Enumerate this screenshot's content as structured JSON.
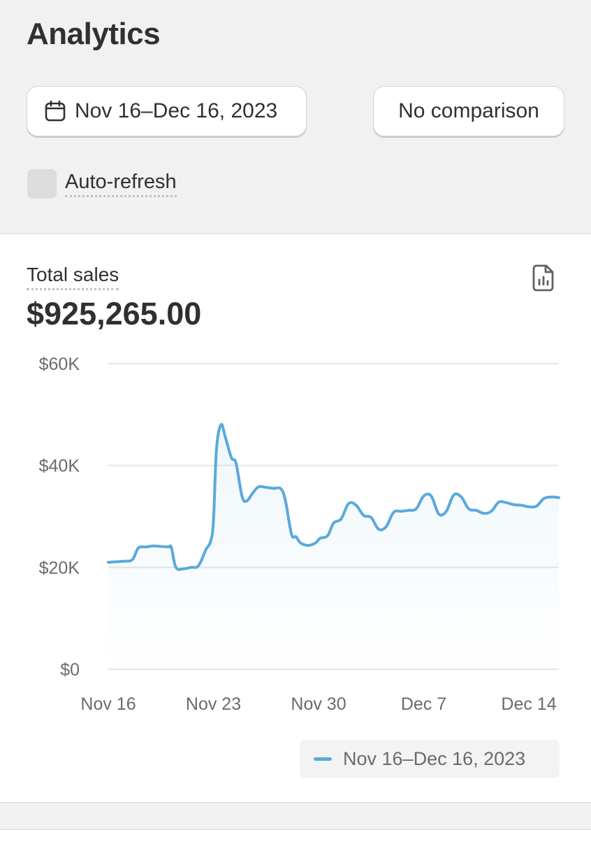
{
  "page": {
    "title": "Analytics"
  },
  "controls": {
    "date_range_label": "Nov 16–Dec 16, 2023",
    "comparison_label": "No comparison",
    "auto_refresh_label": "Auto-refresh",
    "auto_refresh_checked": false
  },
  "icons": {
    "date_button": "calendar-icon",
    "report": "report-icon"
  },
  "colors": {
    "series": "#5aa9dc",
    "background": "#f1f1f1",
    "card": "#ffffff"
  },
  "card": {
    "title": "Total sales",
    "total": "$925,265.00"
  },
  "chart_data": {
    "type": "area",
    "ylim": [
      0,
      60000
    ],
    "y_ticks": [
      0,
      20000,
      40000,
      60000
    ],
    "y_tick_labels": [
      "$0",
      "$20K",
      "$40K",
      "$60K"
    ],
    "x_tick_labels": [
      "Nov 16",
      "Nov 23",
      "Nov 30",
      "Dec 7",
      "Dec 14"
    ],
    "x_tick_days": [
      0,
      7,
      14,
      21,
      28
    ],
    "grid": true,
    "legend_position": "bottom-right",
    "series": [
      {
        "name": "Nov 16–Dec 16, 2023",
        "x": [
          0,
          1,
          1.6,
          2,
          2.5,
          3,
          3.5,
          4,
          4.2,
          4.5,
          5,
          5.5,
          6,
          6.5,
          6.8,
          7,
          7.2,
          7.5,
          7.8,
          8.2,
          8.5,
          8.9,
          9.2,
          9.6,
          10,
          10.5,
          11,
          11.5,
          11.8,
          12.2,
          12.5,
          12.8,
          13.3,
          13.8,
          14.1,
          14.6,
          15,
          15.5,
          16,
          16.5,
          17,
          17.5,
          18,
          18.5,
          19,
          19.5,
          20,
          20.5,
          21,
          21.5,
          22,
          22.5,
          23,
          23.5,
          24,
          24.5,
          25,
          25.5,
          26,
          26.5,
          27,
          27.5,
          28,
          28.5,
          29,
          29.5,
          30
        ],
        "values": [
          21000,
          21200,
          21500,
          23800,
          24000,
          24200,
          24100,
          24000,
          23900,
          20000,
          19700,
          20000,
          20300,
          23500,
          25000,
          29000,
          43000,
          48000,
          45500,
          41500,
          40500,
          34000,
          33000,
          34500,
          35800,
          35700,
          35500,
          35400,
          33000,
          26500,
          26000,
          24800,
          24300,
          24800,
          25700,
          26200,
          28700,
          29500,
          32500,
          32200,
          30200,
          29800,
          27500,
          28000,
          30800,
          31000,
          31200,
          31500,
          34000,
          34000,
          30500,
          31000,
          34200,
          33800,
          31500,
          31200,
          30600,
          31000,
          32800,
          32700,
          32300,
          32200,
          31900,
          32000,
          33500,
          33800,
          33700
        ]
      }
    ]
  }
}
